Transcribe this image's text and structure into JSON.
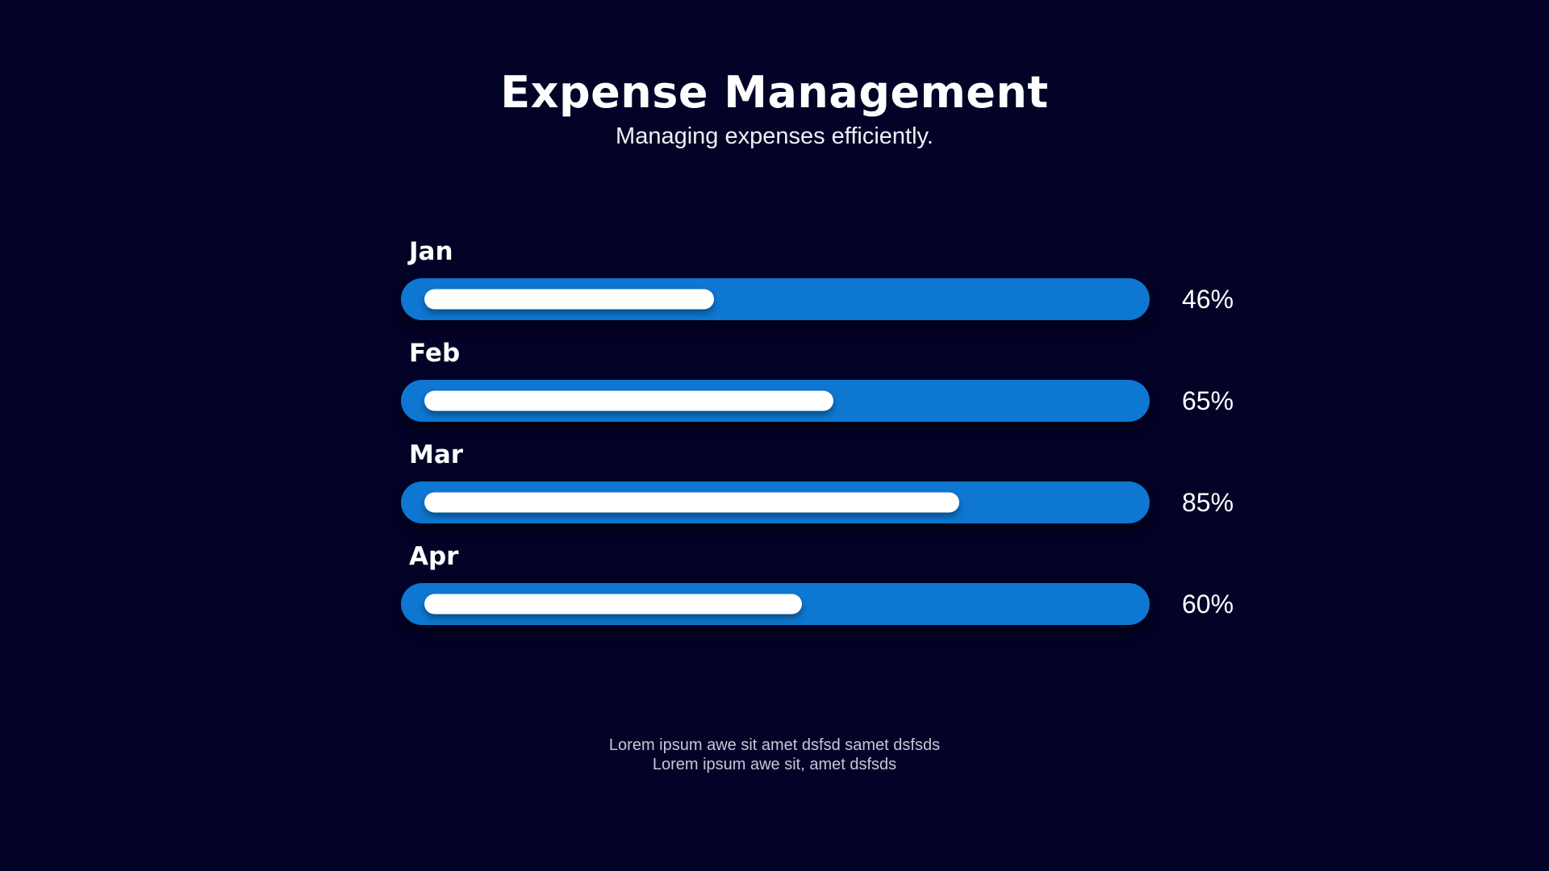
{
  "page": {
    "background_color": "#030227",
    "accent_color": "#0d77d1"
  },
  "header": {
    "title": "Expense Management",
    "subtitle": "Managing expenses efficiently."
  },
  "chart_data": {
    "type": "bar",
    "orientation": "horizontal",
    "categories": [
      "Jan",
      "Feb",
      "Mar",
      "Apr"
    ],
    "values": [
      46,
      65,
      85,
      60
    ],
    "value_labels": [
      "46%",
      "65%",
      "85%",
      "60%"
    ],
    "xlim": [
      0,
      100
    ],
    "grid": false,
    "legend": "none",
    "bar_color": "#0d77d1",
    "fill_color": "#ffffff"
  },
  "footer": {
    "line1": "Lorem ipsum awe sit amet dsfsd samet dsfsds",
    "line2": "Lorem ipsum awe sit, amet dsfsds"
  }
}
